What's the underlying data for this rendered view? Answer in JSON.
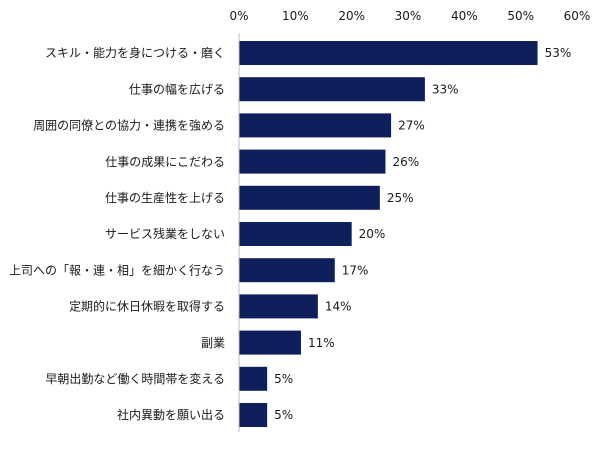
{
  "chart_data": {
    "type": "bar",
    "orientation": "horizontal",
    "categories": [
      "スキル・能力を身につける・磨く",
      "仕事の幅を広げる",
      "周囲の同僚との協力・連携を強める",
      "仕事の成果にこだわる",
      "仕事の生産性を上げる",
      "サービス残業をしない",
      "上司への「報・連・相」を細かく行なう",
      "定期的に休日休暇を取得する",
      "副業",
      "早朝出勤など働く時間帯を変える",
      "社内異動を願い出る"
    ],
    "values": [
      53,
      33,
      27,
      26,
      25,
      20,
      17,
      14,
      11,
      5,
      5
    ],
    "value_labels": [
      "53%",
      "33%",
      "27%",
      "26%",
      "25%",
      "20%",
      "17%",
      "14%",
      "11%",
      "5%",
      "5%"
    ],
    "xlim": [
      0,
      60
    ],
    "x_ticks": [
      0,
      10,
      20,
      30,
      40,
      50,
      60
    ],
    "x_tick_labels": [
      "0%",
      "10%",
      "20%",
      "30%",
      "40%",
      "50%",
      "60%"
    ],
    "axis_position": "top",
    "grid": false,
    "title": "",
    "xlabel": "",
    "ylabel": "",
    "colors": {
      "bar": "#0f1f5c",
      "axis": "#bfbfbf",
      "text": "#1a1a1a"
    }
  }
}
